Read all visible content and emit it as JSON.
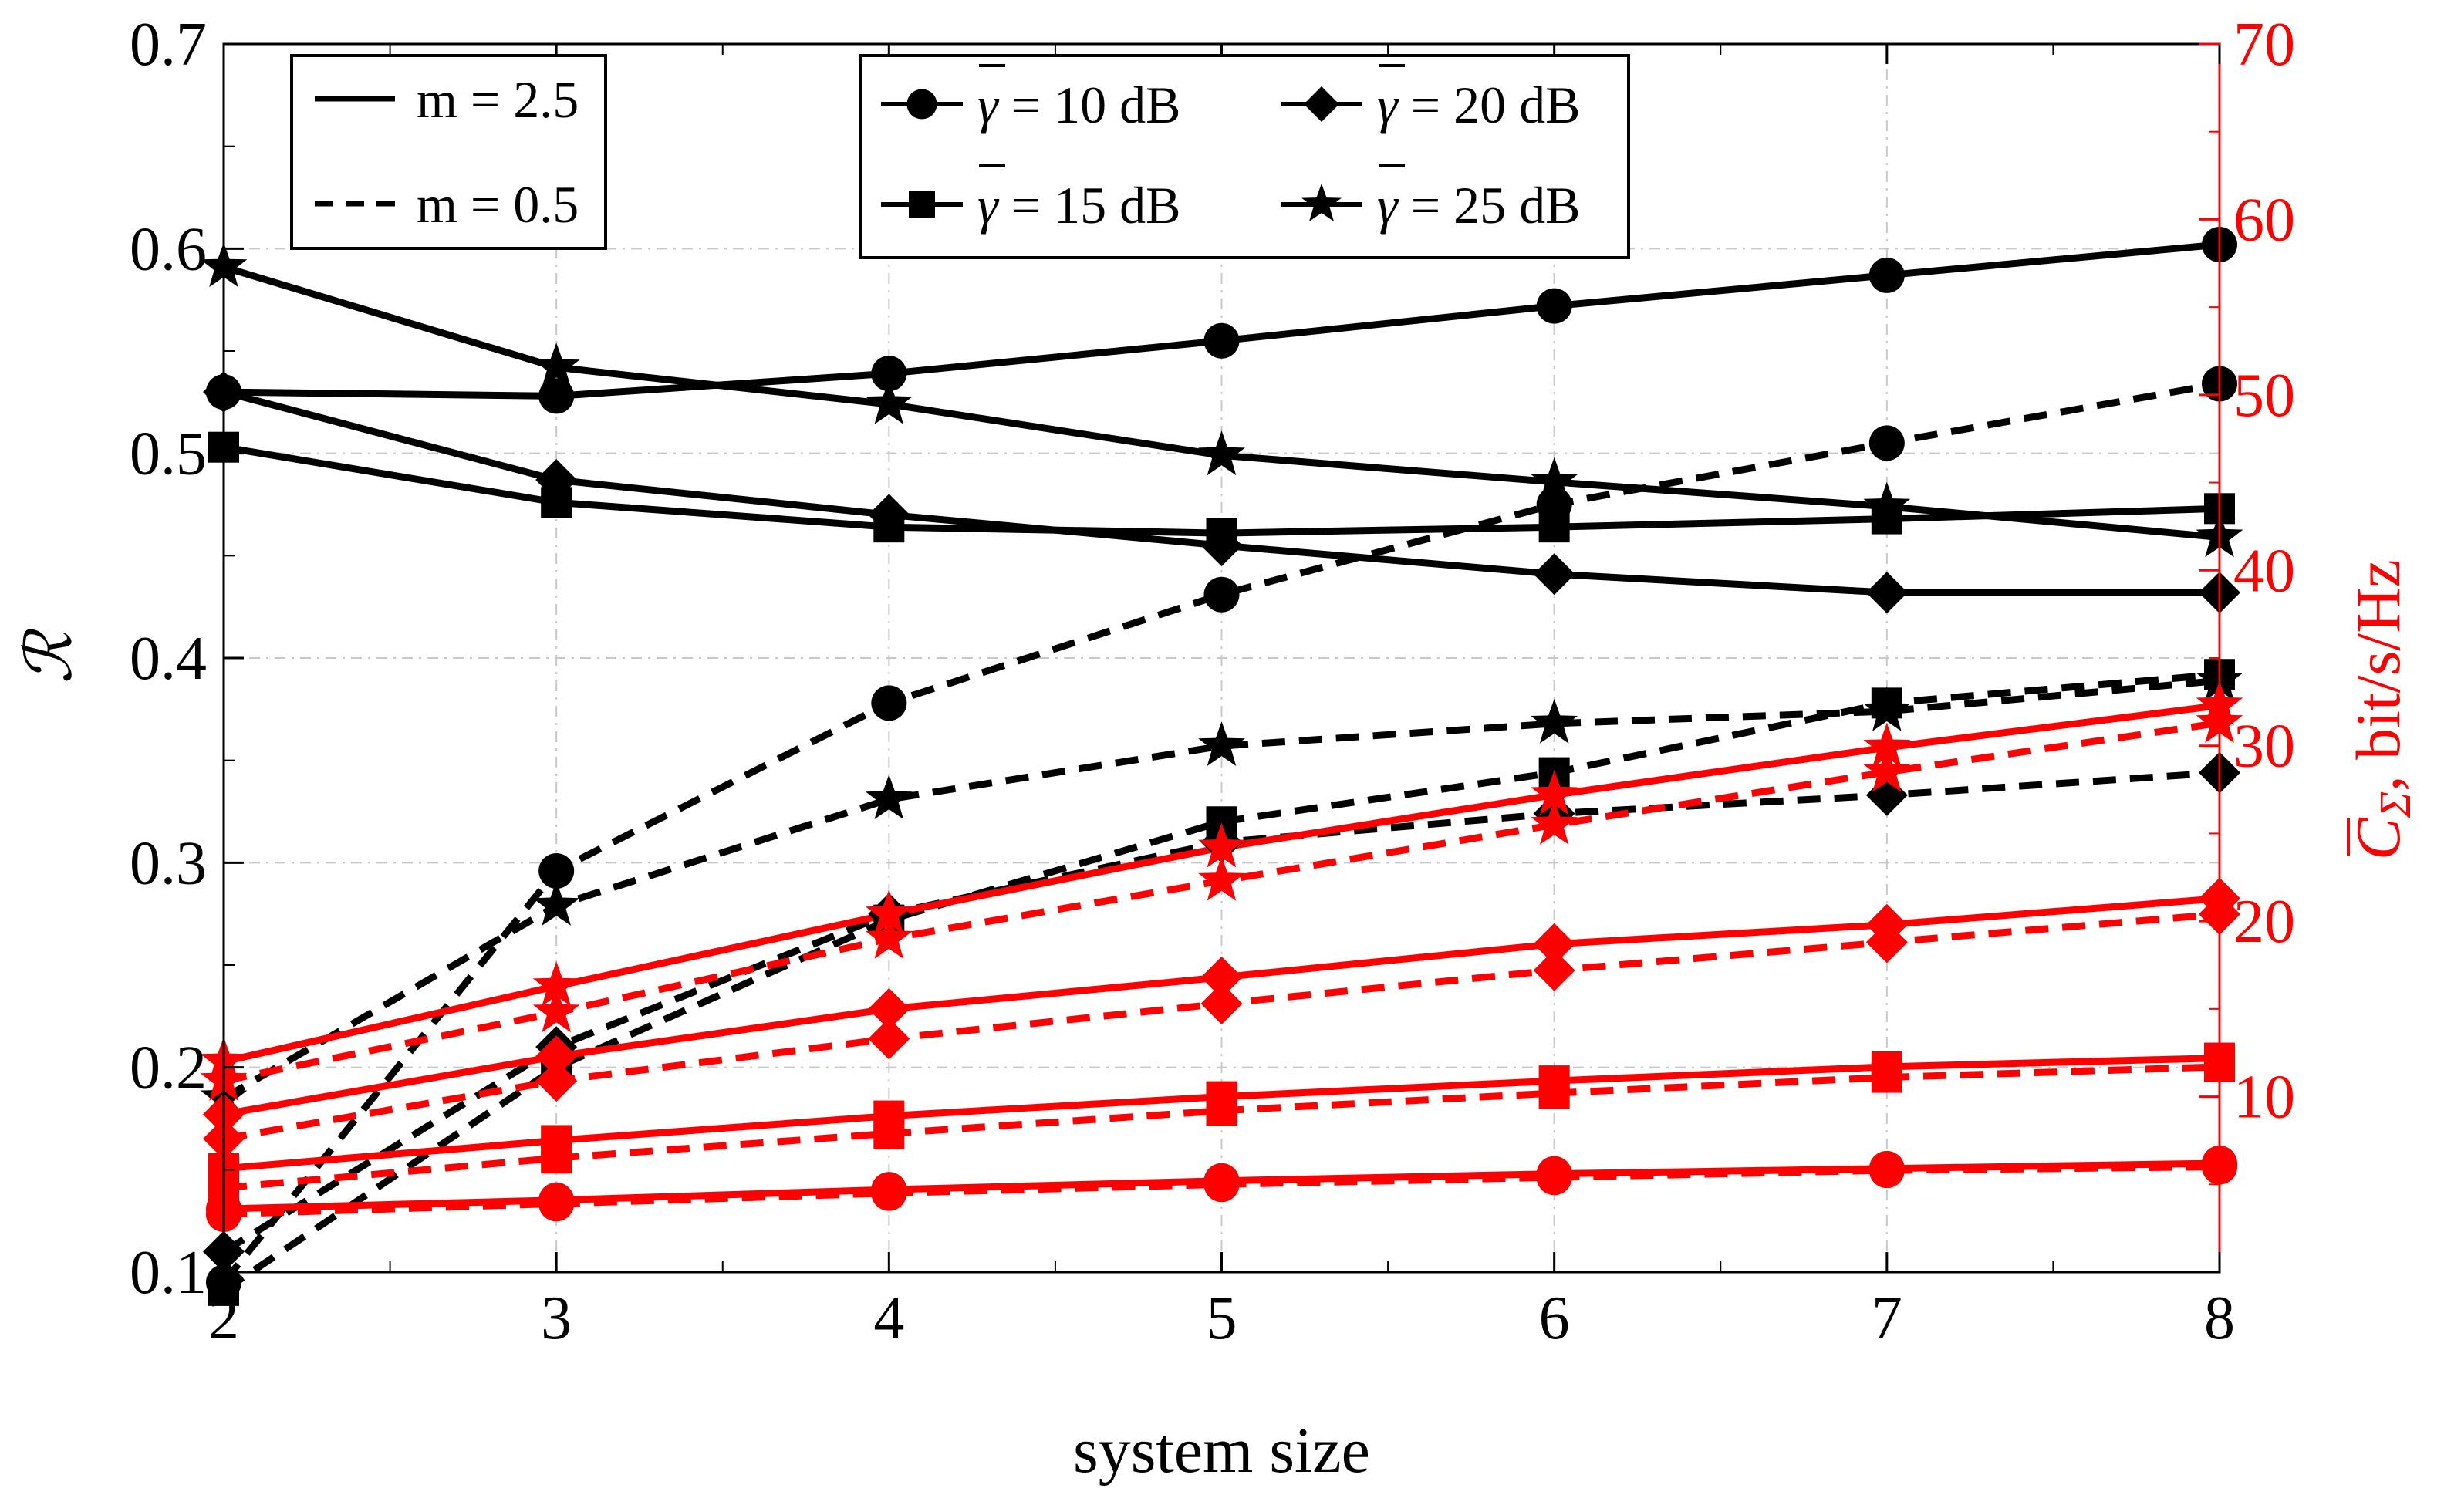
{
  "chart_data": {
    "type": "line",
    "x": [
      2,
      3,
      4,
      5,
      6,
      7,
      8
    ],
    "xlabel": "system size",
    "xlim": [
      2,
      8
    ],
    "x_ticks": [
      "2",
      "3",
      "4",
      "5",
      "6",
      "7",
      "8"
    ],
    "y_left": {
      "label": "ℛ",
      "lim": [
        0.1,
        0.7
      ],
      "ticks": [
        "0.1",
        "0.2",
        "0.3",
        "0.4",
        "0.5",
        "0.6",
        "0.7"
      ],
      "tick_values": [
        0.1,
        0.2,
        0.3,
        0.4,
        0.5,
        0.6,
        0.7
      ],
      "color": "#000000"
    },
    "y_right": {
      "label_main": "C",
      "label_sub": "Σ",
      "label_rest": ", bit/s/Hz",
      "lim": [
        0,
        70
      ],
      "ticks": [
        "10",
        "20",
        "30",
        "40",
        "50",
        "60",
        "70"
      ],
      "tick_values": [
        10,
        20,
        30,
        40,
        50,
        60,
        70
      ],
      "color": "#ff0000"
    },
    "grid": true,
    "legend_m": [
      {
        "label": "m = 2.5",
        "style": "solid"
      },
      {
        "label": "m = 0.5",
        "style": "dashed"
      }
    ],
    "legend_gamma": [
      {
        "symbol": "γ",
        "rest": " = 10 dB",
        "marker": "circle"
      },
      {
        "symbol": "γ",
        "rest": " = 15 dB",
        "marker": "square"
      },
      {
        "symbol": "γ",
        "rest": " = 20 dB",
        "marker": "diamond"
      },
      {
        "symbol": "γ",
        "rest": " = 25 dB",
        "marker": "star"
      }
    ],
    "series": [
      {
        "name": "R, γ=10 dB, m=2.5",
        "axis": "left",
        "color": "#000000",
        "dash": "solid",
        "marker": "circle",
        "values": [
          0.53,
          0.528,
          0.539,
          0.555,
          0.572,
          0.587,
          0.602
        ]
      },
      {
        "name": "R, γ=15 dB, m=2.5",
        "axis": "left",
        "color": "#000000",
        "dash": "solid",
        "marker": "square",
        "values": [
          0.503,
          0.476,
          0.464,
          0.461,
          0.464,
          0.468,
          0.473
        ]
      },
      {
        "name": "R, γ=20 dB, m=2.5",
        "axis": "left",
        "color": "#000000",
        "dash": "solid",
        "marker": "diamond",
        "values": [
          0.53,
          0.487,
          0.47,
          0.455,
          0.441,
          0.432,
          0.432
        ]
      },
      {
        "name": "R, γ=25 dB, m=2.5",
        "axis": "left",
        "color": "#000000",
        "dash": "solid",
        "marker": "star",
        "values": [
          0.591,
          0.542,
          0.524,
          0.499,
          0.486,
          0.474,
          0.459
        ]
      },
      {
        "name": "R, γ=10 dB, m=0.5",
        "axis": "left",
        "color": "#000000",
        "dash": "dashed",
        "marker": "circle",
        "values": [
          0.095,
          0.296,
          0.378,
          0.431,
          0.475,
          0.505,
          0.534
        ]
      },
      {
        "name": "R, γ=15 dB, m=0.5",
        "axis": "left",
        "color": "#000000",
        "dash": "dashed",
        "marker": "square",
        "values": [
          0.091,
          0.2,
          0.272,
          0.32,
          0.344,
          0.378,
          0.392
        ]
      },
      {
        "name": "R, γ=20 dB, m=0.5",
        "axis": "left",
        "color": "#000000",
        "dash": "dashed",
        "marker": "diamond",
        "values": [
          0.11,
          0.21,
          0.275,
          0.31,
          0.324,
          0.333,
          0.344
        ]
      },
      {
        "name": "R, γ=25 dB, m=0.5",
        "axis": "left",
        "color": "#000000",
        "dash": "dashed",
        "marker": "star",
        "values": [
          0.185,
          0.279,
          0.331,
          0.357,
          0.368,
          0.374,
          0.389
        ]
      },
      {
        "name": "C, γ=10 dB, m=2.5",
        "axis": "right",
        "color": "#ff0000",
        "dash": "solid",
        "marker": "circle",
        "values": [
          3.6,
          4.1,
          4.7,
          5.2,
          5.6,
          5.9,
          6.2
        ]
      },
      {
        "name": "C, γ=15 dB, m=2.5",
        "axis": "right",
        "color": "#ff0000",
        "dash": "solid",
        "marker": "square",
        "values": [
          5.9,
          7.5,
          8.9,
          10.0,
          10.9,
          11.7,
          12.2
        ]
      },
      {
        "name": "C, γ=20 dB, m=2.5",
        "axis": "right",
        "color": "#ff0000",
        "dash": "solid",
        "marker": "diamond",
        "values": [
          9.0,
          12.3,
          15.0,
          16.8,
          18.7,
          19.8,
          21.3
        ]
      },
      {
        "name": "C, γ=25 dB, m=2.5",
        "axis": "right",
        "color": "#ff0000",
        "dash": "solid",
        "marker": "star",
        "values": [
          12.0,
          16.3,
          20.4,
          24.2,
          27.2,
          29.9,
          32.3
        ]
      },
      {
        "name": "C, γ=10 dB, m=0.5",
        "axis": "right",
        "color": "#ff0000",
        "dash": "dashed",
        "marker": "circle",
        "values": [
          3.3,
          3.9,
          4.5,
          5.0,
          5.4,
          5.8,
          6.0
        ]
      },
      {
        "name": "C, γ=15 dB, m=0.5",
        "axis": "right",
        "color": "#ff0000",
        "dash": "dashed",
        "marker": "square",
        "values": [
          4.8,
          6.5,
          7.9,
          9.2,
          10.2,
          11.1,
          11.7
        ]
      },
      {
        "name": "C, γ=20 dB, m=0.5",
        "axis": "right",
        "color": "#ff0000",
        "dash": "dashed",
        "marker": "diamond",
        "values": [
          7.6,
          10.9,
          13.3,
          15.3,
          17.2,
          18.8,
          20.4
        ]
      },
      {
        "name": "C, γ=25 dB, m=0.5",
        "axis": "right",
        "color": "#ff0000",
        "dash": "dashed",
        "marker": "star",
        "values": [
          10.9,
          14.8,
          19.0,
          22.3,
          25.5,
          28.5,
          31.3
        ]
      }
    ]
  }
}
